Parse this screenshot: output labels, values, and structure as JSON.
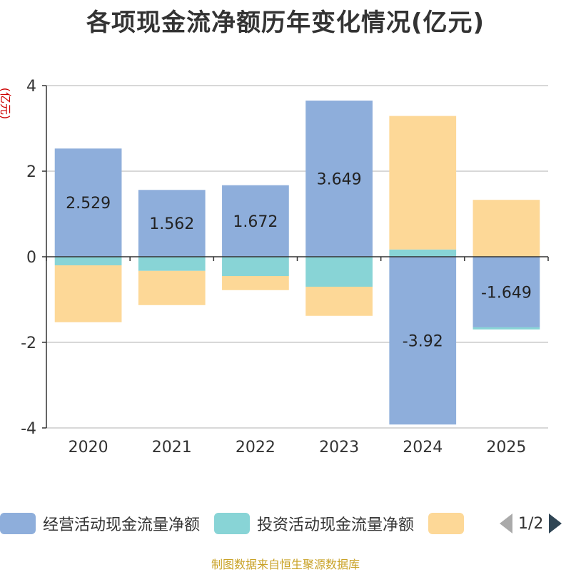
{
  "chart_data": {
    "type": "bar",
    "title": "各项现金流净额历年变化情况(亿元)",
    "ylabel": "(亿元)",
    "ylim": [
      -4,
      4
    ],
    "yticks": [
      4,
      2,
      0,
      -2,
      -4
    ],
    "categories": [
      "2020",
      "2021",
      "2022",
      "2023",
      "2024",
      "2025"
    ],
    "series": [
      {
        "name": "经营活动现金流量净额",
        "color": "#8eaedb",
        "values": [
          2.529,
          1.562,
          1.672,
          3.649,
          -3.92,
          -1.649
        ],
        "labels": [
          "2.529",
          "1.562",
          "1.672",
          "3.649",
          "-3.92",
          "-1.649"
        ]
      },
      {
        "name": "投资活动现金流量净额",
        "color": "#88d4d6",
        "values": [
          -0.2,
          -0.33,
          -0.45,
          -0.7,
          0.17,
          -0.05
        ]
      },
      {
        "name": "",
        "color": "#fdd897",
        "values": [
          -1.33,
          -0.8,
          -0.33,
          -0.68,
          3.12,
          1.33
        ]
      }
    ],
    "legend_position": "bottom",
    "pager": "1/2"
  },
  "source": "制图数据来自恒生聚源数据库"
}
